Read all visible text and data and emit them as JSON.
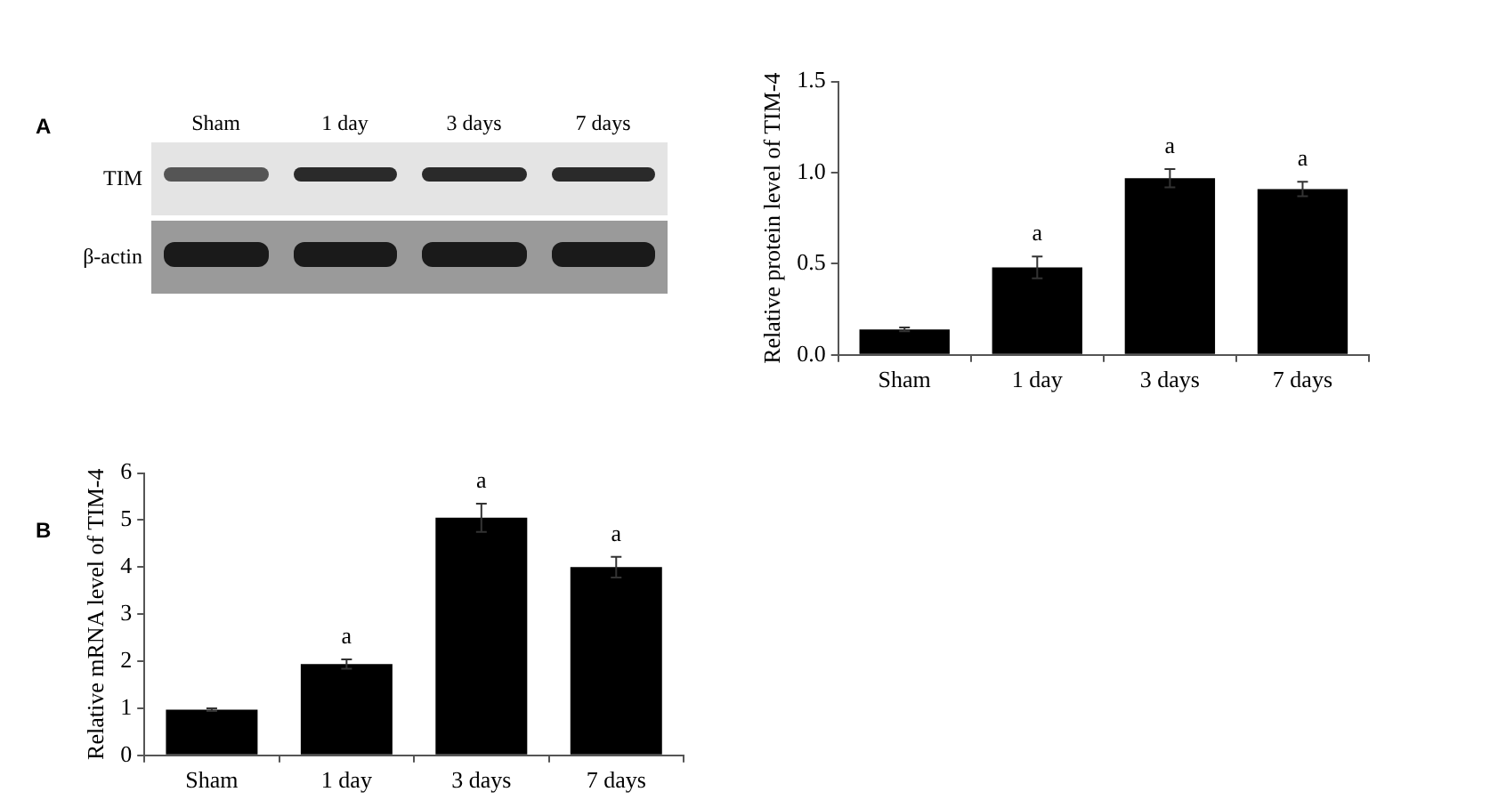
{
  "chart_data": [
    {
      "type": "other",
      "title": "A",
      "categories": [
        "Sham",
        "1 day",
        "3 days",
        "7 days"
      ],
      "annotations": [
        "TIM",
        "β-actin"
      ]
    },
    {
      "type": "bar",
      "ylabel": "Relative protein level of TIM-4",
      "categories": [
        "Sham",
        "1 day",
        "3 days",
        "7 days"
      ],
      "color": "#000000",
      "values": [
        0.14,
        0.48,
        0.97,
        0.91
      ],
      "errors": [
        0.01,
        0.06,
        0.05,
        0.04
      ],
      "ylim": [
        0,
        1.5
      ],
      "yticks": [
        {
          "value": 0,
          "label": "0.0"
        },
        {
          "value": 0.5,
          "label": "0.5"
        },
        {
          "value": 1,
          "label": "1.0"
        },
        {
          "value": 1.5,
          "label": "1.5"
        }
      ],
      "grid": false,
      "legend": false,
      "annotations": [
        {
          "text": "a",
          "x": "1 day",
          "y": 0.48
        },
        {
          "text": "a",
          "x": "3 days",
          "y": 0.97
        },
        {
          "text": "a",
          "x": "7 days",
          "y": 0.91
        }
      ]
    },
    {
      "type": "bar",
      "title": "B",
      "ylabel": "Relative mRNA level of TIM-4",
      "categories": [
        "Sham",
        "1 day",
        "3 days",
        "7 days"
      ],
      "color": "#000000",
      "values": [
        0.97,
        1.94,
        5.05,
        4.0
      ],
      "errors": [
        0.03,
        0.1,
        0.3,
        0.22
      ],
      "ylim": [
        0,
        6
      ],
      "yticks": [
        0,
        1,
        2,
        3,
        4,
        5,
        6
      ],
      "grid": false,
      "legend": false,
      "annotations": [
        {
          "text": "a",
          "x": "1 day",
          "y": 1.94
        },
        {
          "text": "a",
          "x": "3 days",
          "y": 5.05
        },
        {
          "text": "a",
          "x": "7 days",
          "y": 4.0
        }
      ]
    }
  ]
}
